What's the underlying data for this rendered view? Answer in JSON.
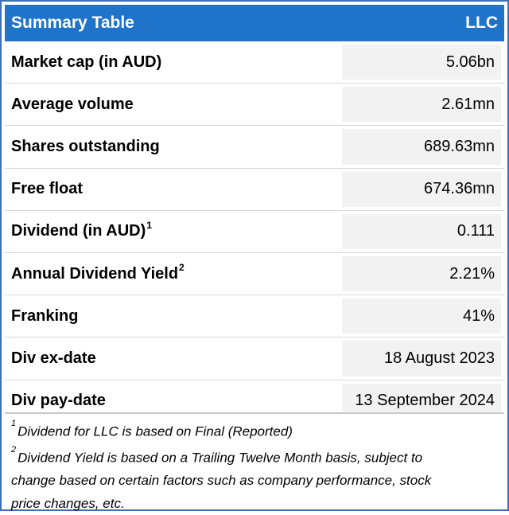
{
  "header": {
    "title": "Summary Table",
    "ticker": "LLC"
  },
  "rows": [
    {
      "label": "Market cap (in AUD)",
      "sup": "",
      "value": "5.06bn"
    },
    {
      "label": "Average volume",
      "sup": "",
      "value": "2.61mn"
    },
    {
      "label": "Shares outstanding",
      "sup": "",
      "value": "689.63mn"
    },
    {
      "label": "Free float",
      "sup": "",
      "value": "674.36mn"
    },
    {
      "label": "Dividend (in AUD)",
      "sup": "1",
      "value": "0.111"
    },
    {
      "label": "Annual Dividend Yield",
      "sup": "2",
      "value": "2.21%"
    },
    {
      "label": "Franking",
      "sup": "",
      "value": "41%"
    },
    {
      "label": "Div ex-date",
      "sup": "",
      "value": "18 August 2023"
    },
    {
      "label": "Div pay-date",
      "sup": "",
      "value": "13 September 2024"
    }
  ],
  "footnotes": {
    "n1_mark": "1",
    "n1_text": "Dividend for LLC is based on Final (Reported)",
    "n2_mark": "2",
    "n2_line1": "Dividend Yield is based on a Trailing Twelve Month basis, subject to",
    "n2_line2": "change based on certain factors such as company performance, stock",
    "n2_line3": "price changes, etc."
  },
  "colors": {
    "header_bg": "#1f73c9",
    "header_text": "#ffffff",
    "value_bg": "#f2f2f2",
    "border": "#3b6fb6"
  }
}
